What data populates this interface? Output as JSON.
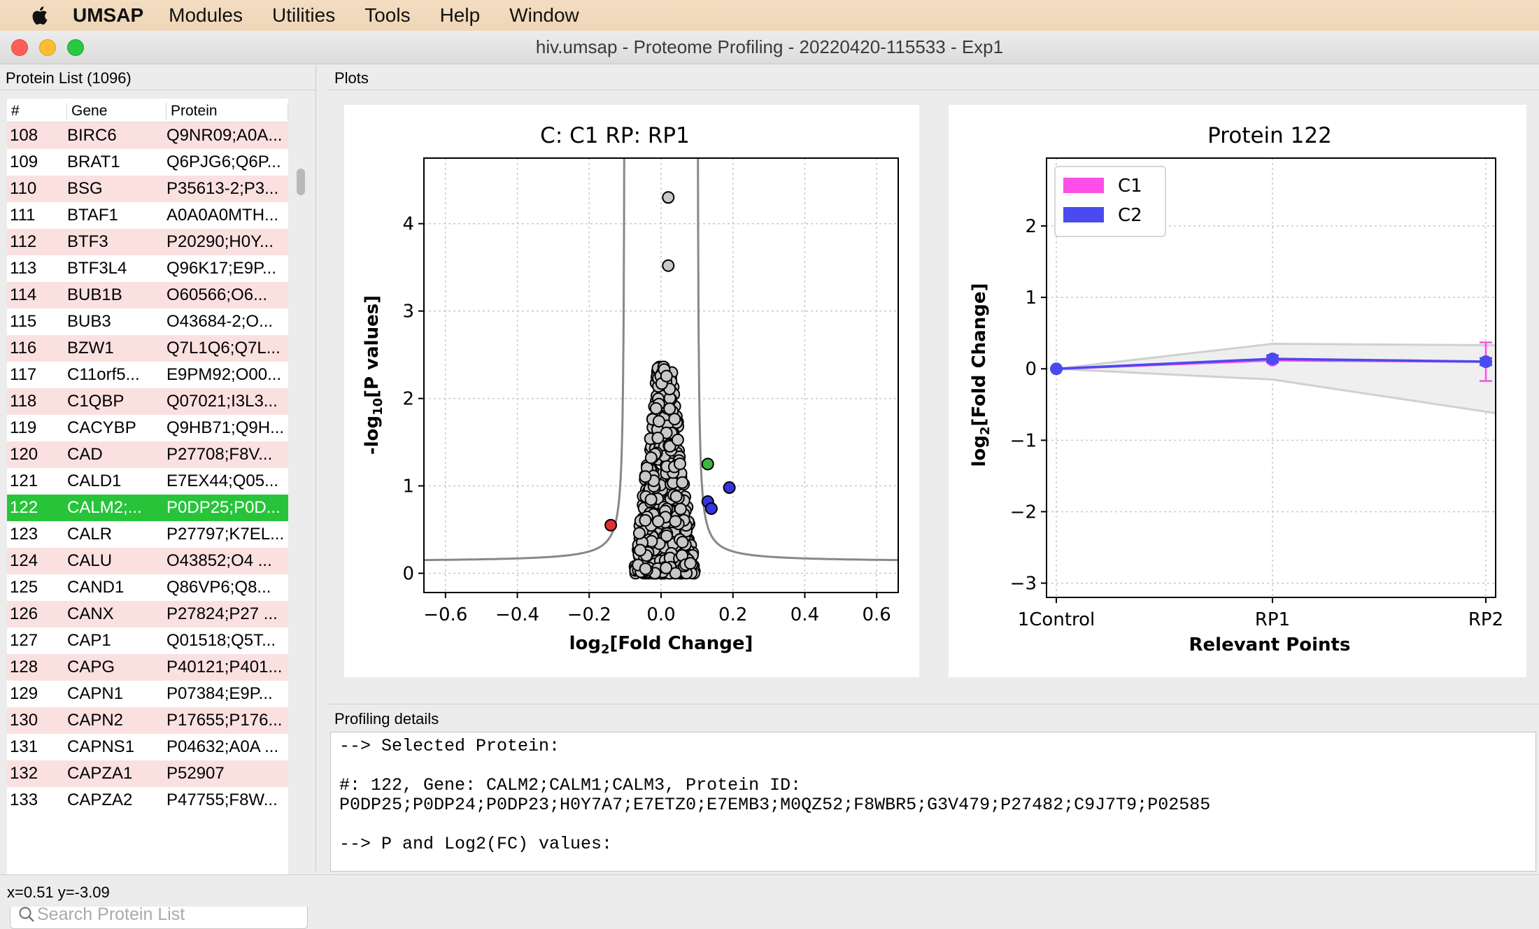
{
  "menubar": {
    "app": "UMSAP",
    "items": [
      "Modules",
      "Utilities",
      "Tools",
      "Help",
      "Window"
    ]
  },
  "window": {
    "title": "hiv.umsap - Proteome Profiling - 20220420-115533 - Exp1"
  },
  "protein_list": {
    "header": "Protein List (1096)",
    "columns": [
      "#",
      "Gene",
      "Protein"
    ],
    "rows": [
      {
        "n": "108",
        "gene": "BIRC6",
        "protein": "Q9NR09;A0A..."
      },
      {
        "n": "109",
        "gene": "BRAT1",
        "protein": "Q6PJG6;Q6P..."
      },
      {
        "n": "110",
        "gene": "BSG",
        "protein": "P35613-2;P3..."
      },
      {
        "n": "111",
        "gene": "BTAF1",
        "protein": "A0A0A0MTH..."
      },
      {
        "n": "112",
        "gene": "BTF3",
        "protein": "P20290;H0Y..."
      },
      {
        "n": "113",
        "gene": "BTF3L4",
        "protein": "Q96K17;E9P..."
      },
      {
        "n": "114",
        "gene": "BUB1B",
        "protein": "O60566;O6..."
      },
      {
        "n": "115",
        "gene": "BUB3",
        "protein": "O43684-2;O..."
      },
      {
        "n": "116",
        "gene": "BZW1",
        "protein": "Q7L1Q6;Q7L..."
      },
      {
        "n": "117",
        "gene": "C11orf5...",
        "protein": "E9PM92;O00..."
      },
      {
        "n": "118",
        "gene": "C1QBP",
        "protein": "Q07021;I3L3..."
      },
      {
        "n": "119",
        "gene": "CACYBP",
        "protein": "Q9HB71;Q9H..."
      },
      {
        "n": "120",
        "gene": "CAD",
        "protein": "P27708;F8V..."
      },
      {
        "n": "121",
        "gene": "CALD1",
        "protein": "E7EX44;Q05..."
      },
      {
        "n": "122",
        "gene": "CALM2;...",
        "protein": "P0DP25;P0D..."
      },
      {
        "n": "123",
        "gene": "CALR",
        "protein": "P27797;K7EL..."
      },
      {
        "n": "124",
        "gene": "CALU",
        "protein": "O43852;O4 ..."
      },
      {
        "n": "125",
        "gene": "CAND1",
        "protein": "Q86VP6;Q8..."
      },
      {
        "n": "126",
        "gene": "CANX",
        "protein": "P27824;P27 ..."
      },
      {
        "n": "127",
        "gene": "CAP1",
        "protein": "Q01518;Q5T..."
      },
      {
        "n": "128",
        "gene": "CAPG",
        "protein": "P40121;P401..."
      },
      {
        "n": "129",
        "gene": "CAPN1",
        "protein": "P07384;E9P..."
      },
      {
        "n": "130",
        "gene": "CAPN2",
        "protein": "P17655;P176..."
      },
      {
        "n": "131",
        "gene": "CAPNS1",
        "protein": "P04632;A0A ..."
      },
      {
        "n": "132",
        "gene": "CAPZA1",
        "protein": "P52907"
      },
      {
        "n": "133",
        "gene": "CAPZA2",
        "protein": "P47755;F8W..."
      }
    ],
    "selected_n": "122",
    "search_placeholder": "Search Protein List"
  },
  "plots": {
    "header": "Plots"
  },
  "chart_data": [
    {
      "type": "scatter",
      "title": "C: C1 RP: RP1",
      "xlabel": "log2[Fold Change]",
      "ylabel": "-log10[P values]",
      "xlim": [
        -0.66,
        0.66
      ],
      "ylim": [
        -0.22,
        4.75
      ],
      "xticks": [
        "−0.6",
        "−0.4",
        "−0.2",
        "0.0",
        "0.2",
        "0.4",
        "0.6"
      ],
      "yticks": [
        "0",
        "1",
        "2",
        "3",
        "4"
      ],
      "grid": true,
      "highlight_points": [
        {
          "x": 0.02,
          "y": 4.3,
          "color": "#c8c8c8"
        },
        {
          "x": 0.02,
          "y": 3.52,
          "color": "#c8c8c8"
        },
        {
          "x": -0.14,
          "y": 0.55,
          "color": "#e03030"
        },
        {
          "x": 0.13,
          "y": 1.25,
          "color": "#3db83d"
        },
        {
          "x": 0.19,
          "y": 0.98,
          "color": "#3535e6"
        },
        {
          "x": 0.13,
          "y": 0.82,
          "color": "#3535e6"
        },
        {
          "x": 0.14,
          "y": 0.74,
          "color": "#3535e6"
        }
      ],
      "threshold_color": "#888888"
    },
    {
      "type": "line",
      "title": "Protein 122",
      "xlabel": "Relevant Points",
      "ylabel": "log2[Fold Change]",
      "categories": [
        "1Control",
        "RP1",
        "RP2"
      ],
      "ylim": [
        -3.2,
        2.95
      ],
      "yticks": [
        "−3",
        "−2",
        "−1",
        "0",
        "1",
        "2"
      ],
      "legend": "top-left",
      "grid": true,
      "series": [
        {
          "name": "C1",
          "color": "#ff4de8",
          "values": [
            0,
            0.12,
            0.1
          ],
          "err": [
            0,
            0.03,
            0.27
          ]
        },
        {
          "name": "C2",
          "color": "#4a4af0",
          "values": [
            0,
            0.14,
            0.1
          ],
          "err": [
            0,
            0.05,
            0.05
          ]
        }
      ],
      "band_upper": [
        0,
        0.35,
        0.33
      ],
      "band_lower": [
        0,
        -0.15,
        -0.62
      ]
    }
  ],
  "details": {
    "header": "Profiling details",
    "text": "--> Selected Protein:\n\n#: 122, Gene: CALM2;CALM1;CALM3, Protein ID:\nP0DP25;P0DP24;P0DP23;H0Y7A7;E7ETZ0;E7EMB3;M0QZ52;F8WBR5;G3V479;P27482;C9J7T9;P02585\n\n--> P and Log2(FC) values:"
  },
  "status": {
    "coords": "x=0.51 y=-3.09"
  }
}
